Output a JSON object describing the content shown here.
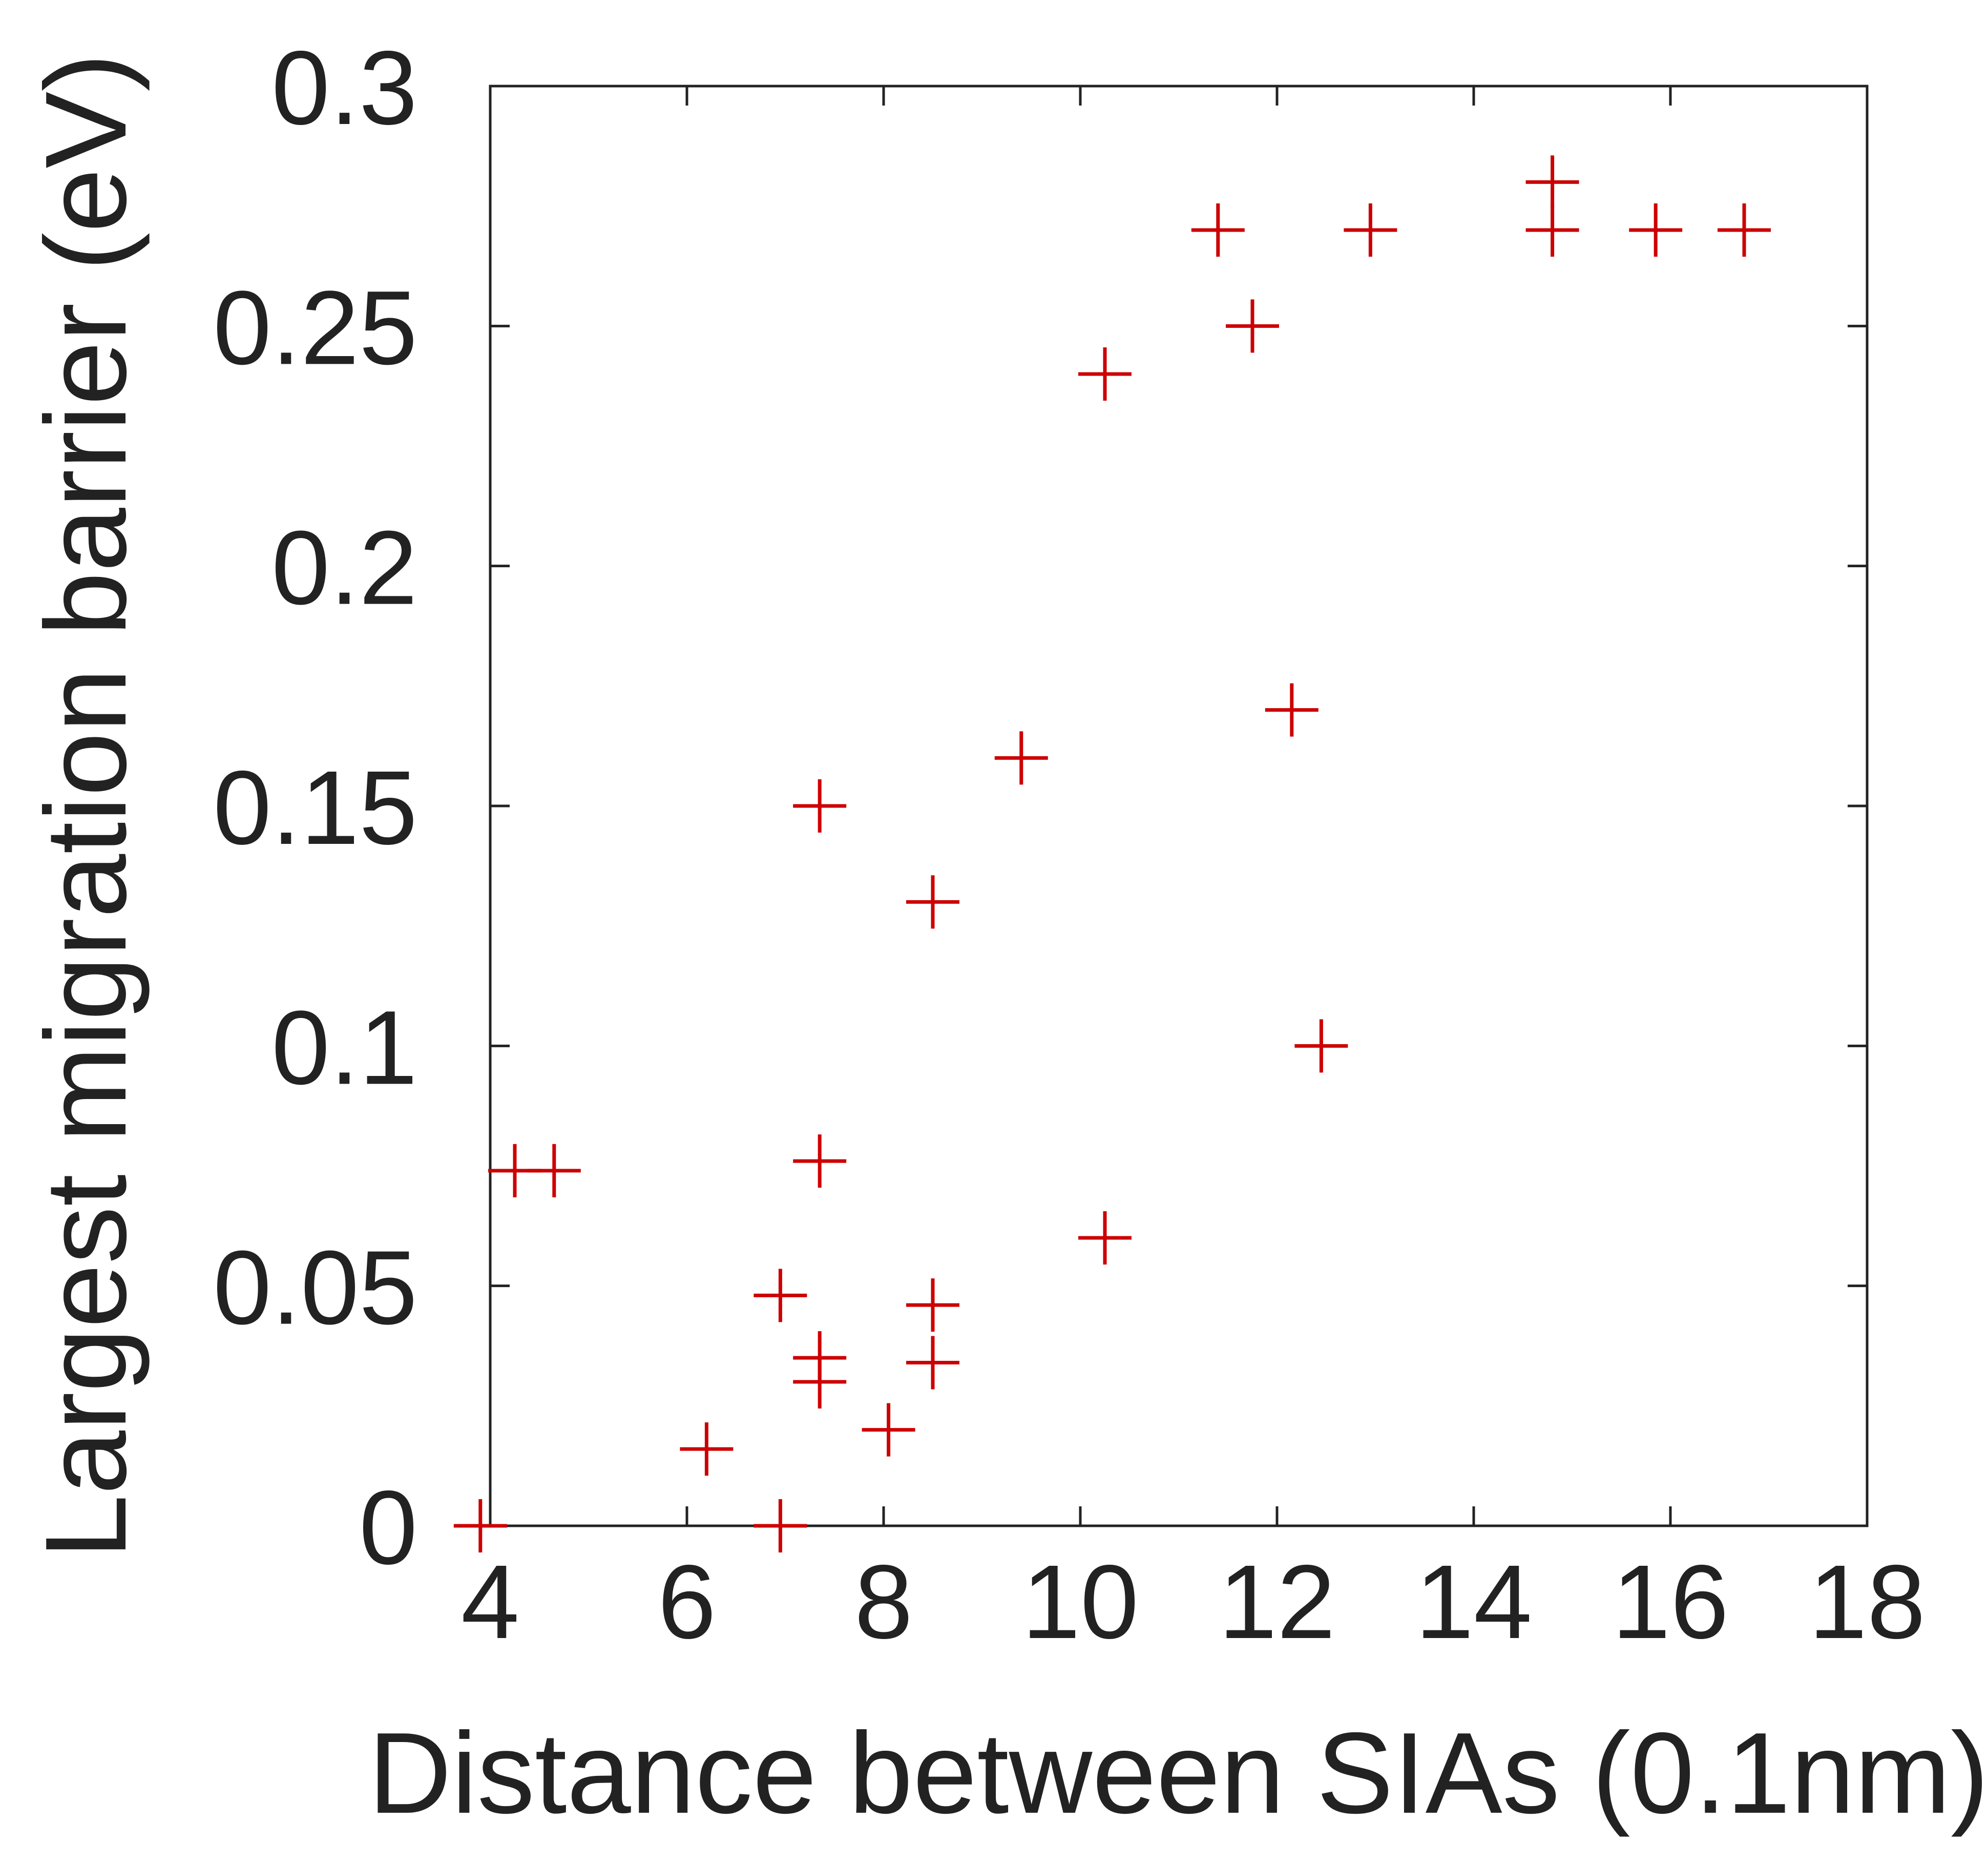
{
  "chart_data": {
    "type": "scatter",
    "xlabel": "Distance between SIAs (0.1nm)",
    "ylabel": "Largest migration barrier (eV)",
    "xlim": [
      4,
      18
    ],
    "ylim": [
      0,
      0.3
    ],
    "xticks": [
      "4",
      "6",
      "8",
      "10",
      "12",
      "14",
      "16",
      "18"
    ],
    "yticks": [
      "0",
      "0.05",
      "0.1",
      "0.15",
      "0.2",
      "0.25",
      "0.3"
    ],
    "grid": false,
    "marker": "plus",
    "marker_color": "#cc0000",
    "points": [
      {
        "x": 3.9,
        "y": 0.0
      },
      {
        "x": 4.25,
        "y": 0.074
      },
      {
        "x": 4.65,
        "y": 0.074
      },
      {
        "x": 6.2,
        "y": 0.016
      },
      {
        "x": 6.95,
        "y": 0.0
      },
      {
        "x": 6.95,
        "y": 0.048
      },
      {
        "x": 7.35,
        "y": 0.035
      },
      {
        "x": 7.35,
        "y": 0.03
      },
      {
        "x": 7.35,
        "y": 0.076
      },
      {
        "x": 7.35,
        "y": 0.15
      },
      {
        "x": 8.05,
        "y": 0.02
      },
      {
        "x": 8.5,
        "y": 0.034
      },
      {
        "x": 8.5,
        "y": 0.046
      },
      {
        "x": 8.5,
        "y": 0.13
      },
      {
        "x": 9.4,
        "y": 0.16
      },
      {
        "x": 10.25,
        "y": 0.06
      },
      {
        "x": 10.25,
        "y": 0.24
      },
      {
        "x": 11.4,
        "y": 0.27
      },
      {
        "x": 11.75,
        "y": 0.25
      },
      {
        "x": 12.15,
        "y": 0.17
      },
      {
        "x": 12.45,
        "y": 0.1
      },
      {
        "x": 12.95,
        "y": 0.27
      },
      {
        "x": 14.8,
        "y": 0.27
      },
      {
        "x": 14.8,
        "y": 0.28
      },
      {
        "x": 15.85,
        "y": 0.27
      },
      {
        "x": 16.75,
        "y": 0.27
      }
    ]
  }
}
